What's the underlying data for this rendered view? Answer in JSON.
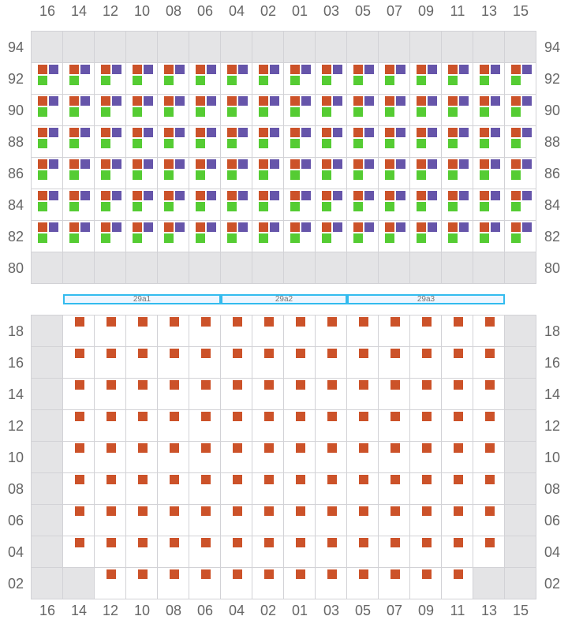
{
  "columns": [
    "16",
    "14",
    "12",
    "10",
    "08",
    "06",
    "04",
    "02",
    "01",
    "03",
    "05",
    "07",
    "09",
    "11",
    "13",
    "15"
  ],
  "colors": {
    "orange": "#cc5229",
    "purple": "#6655aa",
    "green": "#55cc33",
    "empty": "#e4e4e6",
    "band_border": "#33bbee"
  },
  "top_grid": {
    "rows": [
      {
        "label": "94",
        "occupied": [
          0,
          0,
          0,
          0,
          0,
          0,
          0,
          0,
          0,
          0,
          0,
          0,
          0,
          0,
          0,
          0
        ]
      },
      {
        "label": "92",
        "occupied": [
          1,
          1,
          1,
          1,
          1,
          1,
          1,
          1,
          1,
          1,
          1,
          1,
          1,
          1,
          1,
          1
        ]
      },
      {
        "label": "90",
        "occupied": [
          1,
          1,
          1,
          1,
          1,
          1,
          1,
          1,
          1,
          1,
          1,
          1,
          1,
          1,
          1,
          1
        ]
      },
      {
        "label": "88",
        "occupied": [
          1,
          1,
          1,
          1,
          1,
          1,
          1,
          1,
          1,
          1,
          1,
          1,
          1,
          1,
          1,
          1
        ]
      },
      {
        "label": "86",
        "occupied": [
          1,
          1,
          1,
          1,
          1,
          1,
          1,
          1,
          1,
          1,
          1,
          1,
          1,
          1,
          1,
          1
        ]
      },
      {
        "label": "84",
        "occupied": [
          1,
          1,
          1,
          1,
          1,
          1,
          1,
          1,
          1,
          1,
          1,
          1,
          1,
          1,
          1,
          1
        ]
      },
      {
        "label": "82",
        "occupied": [
          1,
          1,
          1,
          1,
          1,
          1,
          1,
          1,
          1,
          1,
          1,
          1,
          1,
          1,
          1,
          1
        ]
      },
      {
        "label": "80",
        "occupied": [
          0,
          0,
          0,
          0,
          0,
          0,
          0,
          0,
          0,
          0,
          0,
          0,
          0,
          0,
          0,
          0
        ]
      }
    ]
  },
  "bands": [
    {
      "label": "29a1",
      "from_col": 1,
      "to_col": 5
    },
    {
      "label": "29a2",
      "from_col": 6,
      "to_col": 9
    },
    {
      "label": "29a3",
      "from_col": 10,
      "to_col": 14
    }
  ],
  "bottom_grid": {
    "rows": [
      {
        "label": "18",
        "cells": [
          0,
          1,
          1,
          1,
          1,
          1,
          1,
          1,
          1,
          1,
          1,
          1,
          1,
          1,
          1,
          0
        ]
      },
      {
        "label": "16",
        "cells": [
          0,
          1,
          1,
          1,
          1,
          1,
          1,
          1,
          1,
          1,
          1,
          1,
          1,
          1,
          1,
          0
        ]
      },
      {
        "label": "14",
        "cells": [
          0,
          1,
          1,
          1,
          1,
          1,
          1,
          1,
          1,
          1,
          1,
          1,
          1,
          1,
          1,
          0
        ]
      },
      {
        "label": "12",
        "cells": [
          0,
          1,
          1,
          1,
          1,
          1,
          1,
          1,
          1,
          1,
          1,
          1,
          1,
          1,
          1,
          0
        ]
      },
      {
        "label": "10",
        "cells": [
          0,
          1,
          1,
          1,
          1,
          1,
          1,
          1,
          1,
          1,
          1,
          1,
          1,
          1,
          1,
          0
        ]
      },
      {
        "label": "08",
        "cells": [
          0,
          1,
          1,
          1,
          1,
          1,
          1,
          1,
          1,
          1,
          1,
          1,
          1,
          1,
          1,
          0
        ]
      },
      {
        "label": "06",
        "cells": [
          0,
          1,
          1,
          1,
          1,
          1,
          1,
          1,
          1,
          1,
          1,
          1,
          1,
          1,
          1,
          0
        ]
      },
      {
        "label": "04",
        "cells": [
          0,
          1,
          1,
          1,
          1,
          1,
          1,
          1,
          1,
          1,
          1,
          1,
          1,
          1,
          1,
          0
        ]
      },
      {
        "label": "02",
        "cells": [
          0,
          0,
          1,
          1,
          1,
          1,
          1,
          1,
          1,
          1,
          1,
          1,
          1,
          1,
          0,
          0
        ]
      }
    ]
  }
}
